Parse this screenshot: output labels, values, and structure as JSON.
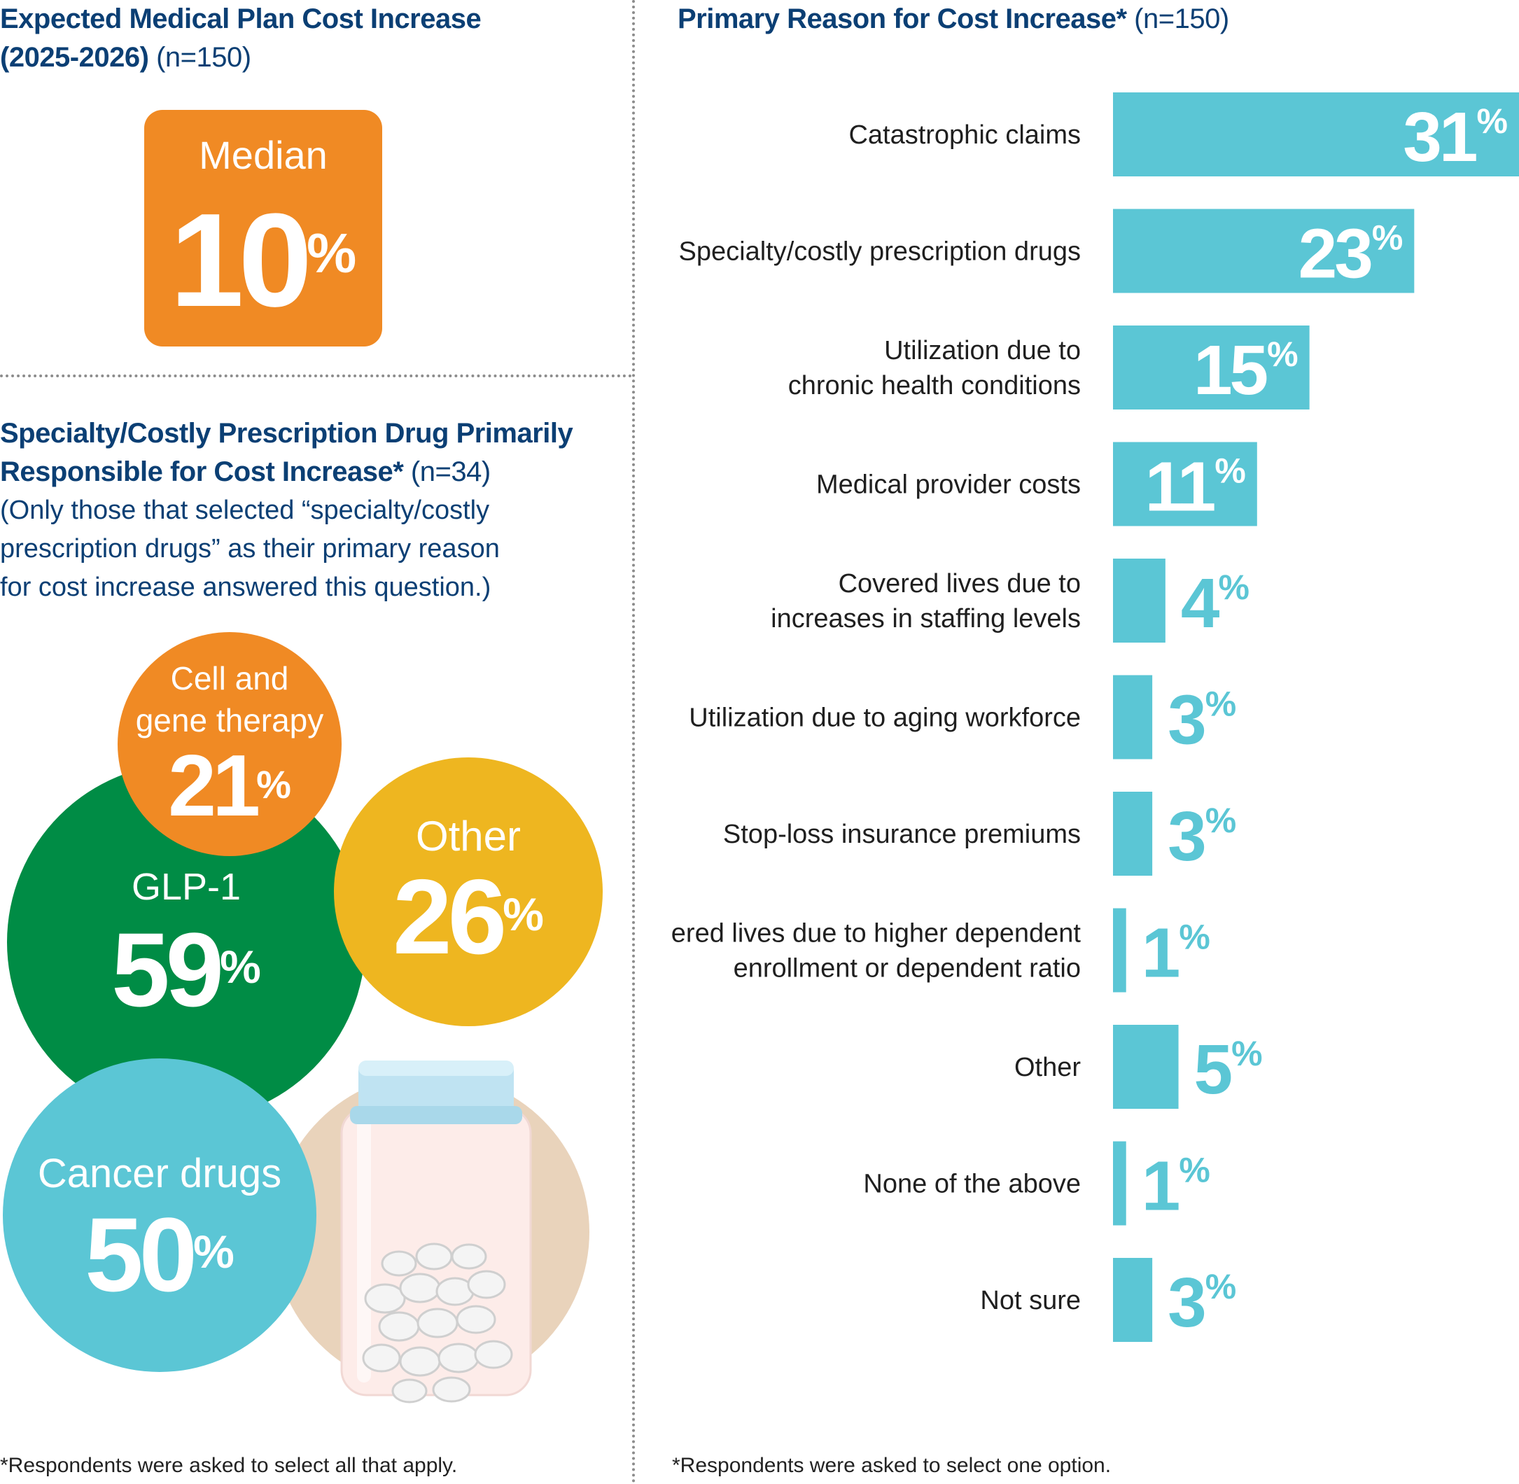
{
  "left_top": {
    "title_line1": "Expected Medical Plan Cost Increase",
    "title_line2": "(2025-2026)",
    "n": "(n=150)",
    "median_label": "Median",
    "median_value": "10",
    "median_unit": "%"
  },
  "left_bottom": {
    "title_line1": "Specialty/Costly Prescription Drug Primarily",
    "title_line2": "Responsible for Cost Increase*",
    "n": "(n=34)",
    "note_line1": "(Only those that selected “specialty/costly",
    "note_line2": "prescription drugs” as their primary reason",
    "note_line3": "for cost increase answered this question.)",
    "footnote": "*Respondents were asked to select all that apply."
  },
  "right": {
    "title": "Primary Reason for Cost Increase*",
    "n": "(n=150)",
    "footnote": "*Respondents were asked to select one option."
  },
  "colors": {
    "navy": "#0b3f74",
    "orange": "#f08a24",
    "green": "#008c45",
    "yellow": "#eeb620",
    "teal": "#5bc6d5"
  },
  "icons": [
    "pill-bottle-icon"
  ],
  "chart_data": [
    {
      "type": "bar",
      "orientation": "horizontal",
      "title": "Primary Reason for Cost Increase*",
      "categories": [
        "Catastrophic claims",
        "Specialty/costly prescription drugs",
        "Utilization due to chronic health conditions",
        "Medical provider costs",
        "Covered lives due to increases in staffing levels",
        "Utilization due to aging workforce",
        "Stop-loss insurance premiums",
        "Covered lives due to higher dependent enrollment or dependent ratio",
        "Other",
        "None of the above",
        "Not sure"
      ],
      "label_lines": [
        [
          "Catastrophic claims"
        ],
        [
          "Specialty/costly prescription drugs"
        ],
        [
          "Utilization due to",
          "chronic health conditions"
        ],
        [
          "Medical provider costs"
        ],
        [
          "Covered lives due to",
          "increases in staffing levels"
        ],
        [
          "Utilization due to aging workforce"
        ],
        [
          "Stop-loss insurance premiums"
        ],
        [
          "Covered lives due to higher dependent",
          "enrollment or dependent ratio"
        ],
        [
          "Other"
        ],
        [
          "None of the above"
        ],
        [
          "Not sure"
        ]
      ],
      "values": [
        31,
        23,
        15,
        11,
        4,
        3,
        3,
        1,
        5,
        1,
        3
      ],
      "unit": "%",
      "xlim": [
        0,
        31
      ]
    },
    {
      "type": "bubble",
      "title": "Specialty/Costly Prescription Drug Primarily Responsible for Cost Increase*",
      "items": [
        {
          "label_lines": [
            "Cell and",
            "gene therapy"
          ],
          "value": 21,
          "color": "#f08a24"
        },
        {
          "label_lines": [
            "GLP-1"
          ],
          "value": 59,
          "color": "#008c45"
        },
        {
          "label_lines": [
            "Other"
          ],
          "value": 26,
          "color": "#eeb620"
        },
        {
          "label_lines": [
            "Cancer drugs"
          ],
          "value": 50,
          "color": "#5bc6d5"
        }
      ],
      "unit": "%"
    }
  ]
}
